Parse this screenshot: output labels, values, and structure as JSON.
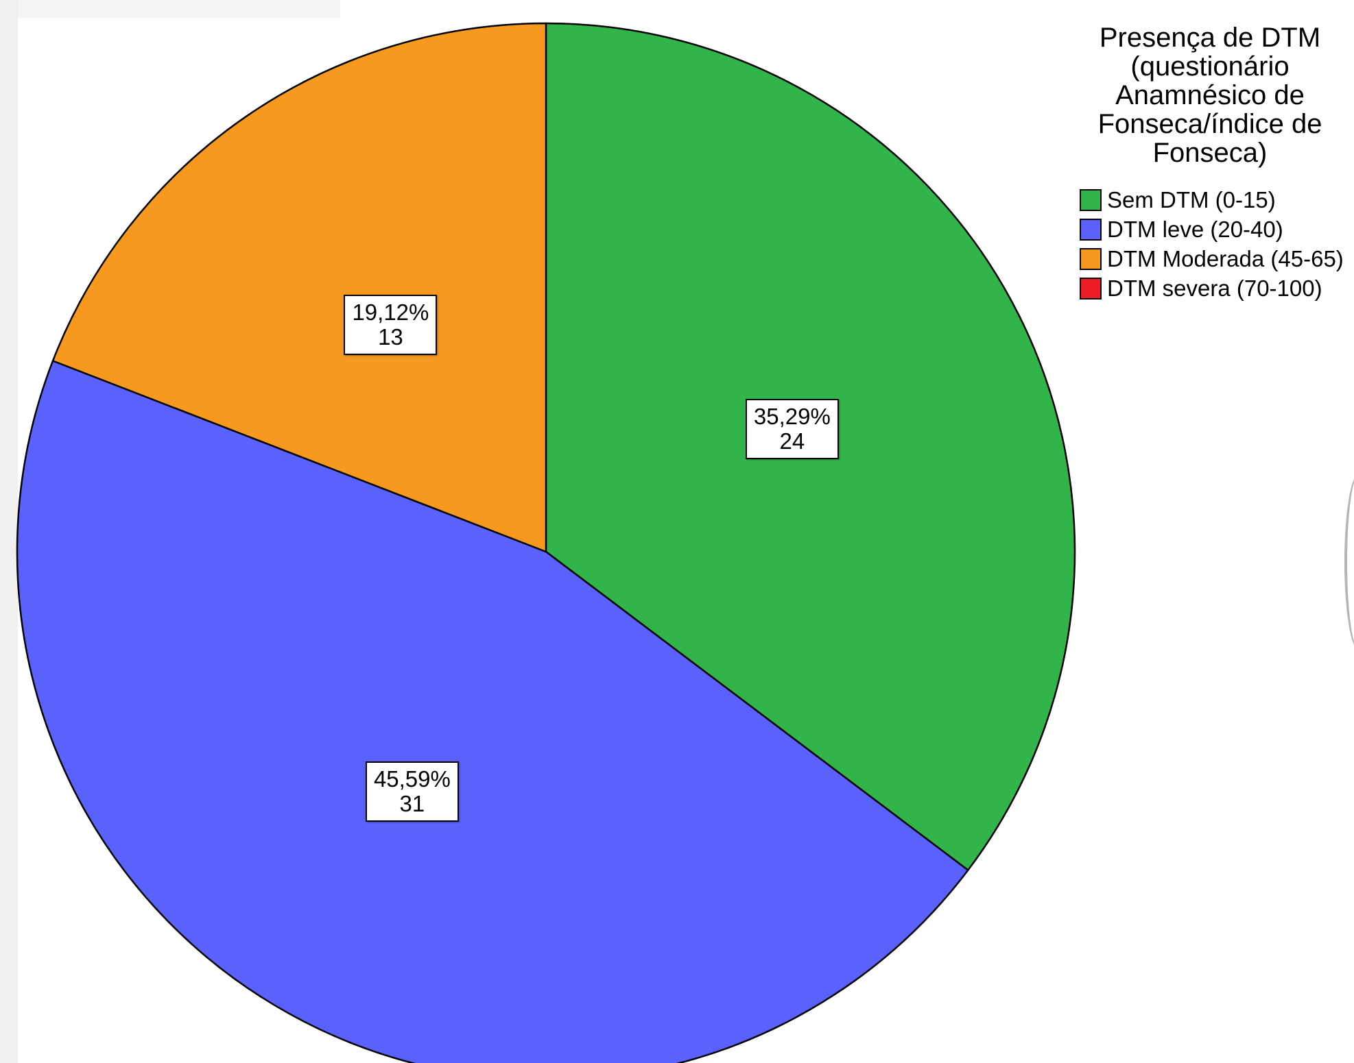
{
  "chart_data": {
    "type": "pie",
    "title": "Presença de DTM (questionário Anamnésico de Fonseca/índice de Fonseca)",
    "start_angle_deg": 0,
    "direction": "clockwise",
    "slices": [
      {
        "name": "Sem DTM (0-15)",
        "count": 24,
        "percent": 35.29,
        "percent_label": "35,29%",
        "count_label": "24",
        "color": "#31b54a"
      },
      {
        "name": "DTM leve (20-40)",
        "count": 31,
        "percent": 45.59,
        "percent_label": "45,59%",
        "count_label": "31",
        "color": "#5a61fd"
      },
      {
        "name": "DTM Moderada (45-65)",
        "count": 13,
        "percent": 19.12,
        "percent_label": "19,12%",
        "count_label": "13",
        "color": "#f7991f"
      },
      {
        "name": "DTM severa (70-100)",
        "count": 0,
        "percent": 0,
        "percent_label": "",
        "count_label": "",
        "color": "#ed1c24"
      }
    ]
  },
  "legend": {
    "title_lines": [
      "Presença de DTM",
      "(questionário",
      "Anamnésico de",
      "Fonseca/índice de",
      "Fonseca)"
    ],
    "items": [
      {
        "label": "Sem DTM (0-15)",
        "color": "#31b54a"
      },
      {
        "label": "DTM leve (20-40)",
        "color": "#5a61fd"
      },
      {
        "label": "DTM Moderada (45-65)",
        "color": "#f7991f"
      },
      {
        "label": "DTM severa (70-100)",
        "color": "#ed1c24"
      }
    ]
  }
}
